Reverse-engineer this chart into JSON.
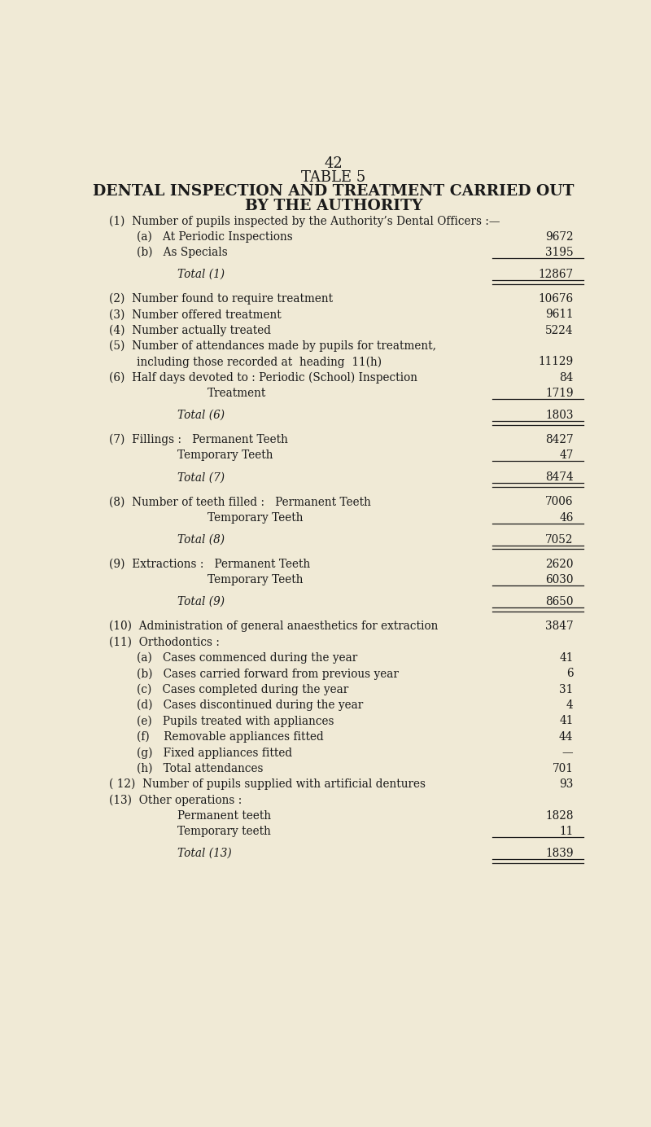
{
  "page_number": "42",
  "title1": "TABLE 5",
  "title2": "DENTAL INSPECTION AND TREATMENT CARRIED OUT",
  "title3": "BY THE AUTHORITY",
  "bg_color": "#f0ead6",
  "text_color": "#1a1a1a",
  "rows": [
    {
      "indent": 0,
      "label": "(1)  Number of pupils inspected by the Authority’s Dental Officers :—",
      "value": "",
      "is_total": false,
      "underline_after": false,
      "extra_space_after": false
    },
    {
      "indent": 1,
      "label": "(a)   At Periodic Inspections",
      "value": "9672",
      "is_total": false,
      "underline_after": false,
      "extra_space_after": false
    },
    {
      "indent": 1,
      "label": "(b)   As Specials",
      "value": "3195",
      "is_total": false,
      "underline_after": true,
      "extra_space_after": false
    },
    {
      "indent": 2,
      "label": "Total (1)",
      "value": "12867",
      "is_total": true,
      "underline_after": true,
      "extra_space_after": true
    },
    {
      "indent": 0,
      "label": "(2)  Number found to require treatment",
      "value": "10676",
      "is_total": false,
      "underline_after": false,
      "extra_space_after": false
    },
    {
      "indent": 0,
      "label": "(3)  Number offered treatment",
      "value": "9611",
      "is_total": false,
      "underline_after": false,
      "extra_space_after": false
    },
    {
      "indent": 0,
      "label": "(4)  Number actually treated",
      "value": "5224",
      "is_total": false,
      "underline_after": false,
      "extra_space_after": false
    },
    {
      "indent": 0,
      "label": "(5)  Number of attendances made by pupils for treatment,",
      "value": "",
      "is_total": false,
      "underline_after": false,
      "extra_space_after": false
    },
    {
      "indent": 1,
      "label": "including those recorded at  heading  11(h)",
      "value": "11129",
      "is_total": false,
      "underline_after": false,
      "extra_space_after": false
    },
    {
      "indent": 0,
      "label": "(6)  Half days devoted to : Periodic (School) Inspection",
      "value": "84",
      "is_total": false,
      "underline_after": false,
      "extra_space_after": false
    },
    {
      "indent": 3,
      "label": "Treatment",
      "value": "1719",
      "is_total": false,
      "underline_after": true,
      "extra_space_after": false
    },
    {
      "indent": 2,
      "label": "Total (6)",
      "value": "1803",
      "is_total": true,
      "underline_after": true,
      "extra_space_after": true
    },
    {
      "indent": 0,
      "label": "(7)  Fillings :   Permanent Teeth",
      "value": "8427",
      "is_total": false,
      "underline_after": false,
      "extra_space_after": false
    },
    {
      "indent": 2,
      "label": "Temporary Teeth",
      "value": "47",
      "is_total": false,
      "underline_after": true,
      "extra_space_after": false
    },
    {
      "indent": 2,
      "label": "Total (7)",
      "value": "8474",
      "is_total": true,
      "underline_after": true,
      "extra_space_after": true
    },
    {
      "indent": 0,
      "label": "(8)  Number of teeth filled :   Permanent Teeth",
      "value": "7006",
      "is_total": false,
      "underline_after": false,
      "extra_space_after": false
    },
    {
      "indent": 3,
      "label": "Temporary Teeth",
      "value": "46",
      "is_total": false,
      "underline_after": true,
      "extra_space_after": false
    },
    {
      "indent": 2,
      "label": "Total (8)",
      "value": "7052",
      "is_total": true,
      "underline_after": true,
      "extra_space_after": true
    },
    {
      "indent": 0,
      "label": "(9)  Extractions :   Permanent Teeth",
      "value": "2620",
      "is_total": false,
      "underline_after": false,
      "extra_space_after": false
    },
    {
      "indent": 3,
      "label": "Temporary Teeth",
      "value": "6030",
      "is_total": false,
      "underline_after": true,
      "extra_space_after": false
    },
    {
      "indent": 2,
      "label": "Total (9)",
      "value": "8650",
      "is_total": true,
      "underline_after": true,
      "extra_space_after": true
    },
    {
      "indent": 0,
      "label": "(10)  Administration of general anaesthetics for extraction",
      "value": "3847",
      "is_total": false,
      "underline_after": false,
      "extra_space_after": false
    },
    {
      "indent": 0,
      "label": "(11)  Orthodontics :",
      "value": "",
      "is_total": false,
      "underline_after": false,
      "extra_space_after": false
    },
    {
      "indent": 1,
      "label": "(a)   Cases commenced during the year",
      "value": "41",
      "is_total": false,
      "underline_after": false,
      "extra_space_after": false
    },
    {
      "indent": 1,
      "label": "(b)   Cases carried forward from previous year",
      "value": "6",
      "is_total": false,
      "underline_after": false,
      "extra_space_after": false
    },
    {
      "indent": 1,
      "label": "(c)   Cases completed during the year",
      "value": "31",
      "is_total": false,
      "underline_after": false,
      "extra_space_after": false
    },
    {
      "indent": 1,
      "label": "(d)   Cases discontinued during the year",
      "value": "4",
      "is_total": false,
      "underline_after": false,
      "extra_space_after": false
    },
    {
      "indent": 1,
      "label": "(e)   Pupils treated with appliances",
      "value": "41",
      "is_total": false,
      "underline_after": false,
      "extra_space_after": false
    },
    {
      "indent": 1,
      "label": "(f)    Removable appliances fitted",
      "value": "44",
      "is_total": false,
      "underline_after": false,
      "extra_space_after": false
    },
    {
      "indent": 1,
      "label": "(g)   Fixed appliances fitted",
      "value": "—",
      "is_total": false,
      "underline_after": false,
      "extra_space_after": false
    },
    {
      "indent": 1,
      "label": "(h)   Total attendances",
      "value": "701",
      "is_total": false,
      "underline_after": false,
      "extra_space_after": false
    },
    {
      "indent": 0,
      "label": "( 12)  Number of pupils supplied with artificial dentures",
      "value": "93",
      "is_total": false,
      "underline_after": false,
      "extra_space_after": false
    },
    {
      "indent": 0,
      "label": "(13)  Other operations :",
      "value": "",
      "is_total": false,
      "underline_after": false,
      "extra_space_after": false
    },
    {
      "indent": 2,
      "label": "Permanent teeth",
      "value": "1828",
      "is_total": false,
      "underline_after": false,
      "extra_space_after": false
    },
    {
      "indent": 2,
      "label": "Temporary teeth",
      "value": "11",
      "is_total": false,
      "underline_after": true,
      "extra_space_after": false
    },
    {
      "indent": 2,
      "label": "Total (13)",
      "value": "1839",
      "is_total": true,
      "underline_after": true,
      "extra_space_after": false
    }
  ]
}
